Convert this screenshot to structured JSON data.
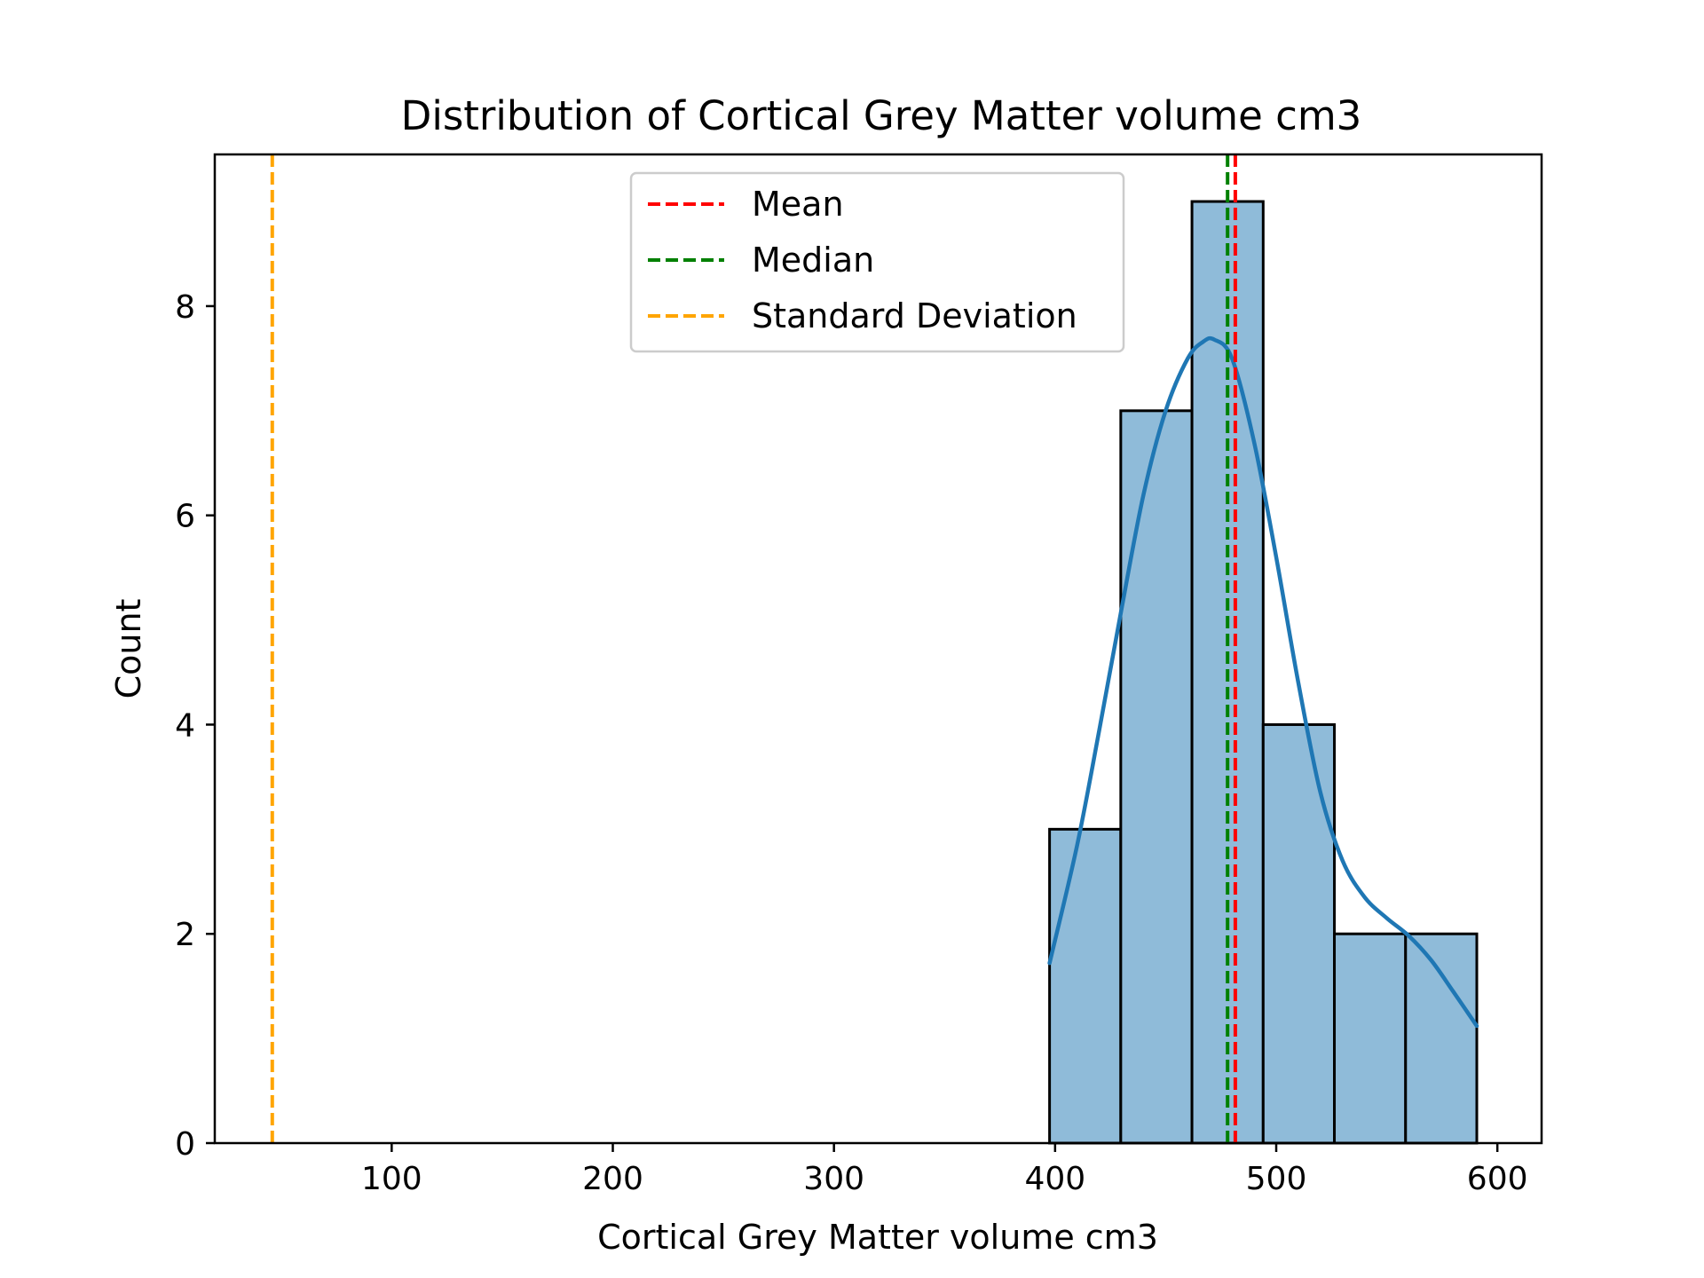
{
  "chart_data": {
    "type": "histogram",
    "title": "Distribution of Cortical Grey Matter volume cm3",
    "xlabel": "Cortical Grey Matter volume cm3",
    "ylabel": "Count",
    "xlim": [
      20,
      620
    ],
    "ylim": [
      0,
      9.45
    ],
    "xticks": [
      100,
      200,
      300,
      400,
      500,
      600
    ],
    "yticks": [
      0,
      2,
      4,
      6,
      8
    ],
    "grid": false,
    "bins": [
      {
        "x0": 397.5,
        "x1": 429.7,
        "count": 3
      },
      {
        "x0": 429.7,
        "x1": 461.9,
        "count": 7
      },
      {
        "x0": 461.9,
        "x1": 494.1,
        "count": 9
      },
      {
        "x0": 494.1,
        "x1": 526.3,
        "count": 4
      },
      {
        "x0": 526.3,
        "x1": 558.5,
        "count": 2
      },
      {
        "x0": 558.5,
        "x1": 590.7,
        "count": 2
      }
    ],
    "bar_color": "#8fbbd9",
    "bar_edge_color": "#000000",
    "kde": {
      "color": "#1f77b4",
      "points": [
        [
          397.5,
          1.72
        ],
        [
          410,
          2.85
        ],
        [
          420,
          3.95
        ],
        [
          430,
          5.1
        ],
        [
          440,
          6.2
        ],
        [
          450,
          7.0
        ],
        [
          460,
          7.5
        ],
        [
          467,
          7.66
        ],
        [
          472,
          7.68
        ],
        [
          480,
          7.5
        ],
        [
          490,
          6.7
        ],
        [
          500,
          5.6
        ],
        [
          510,
          4.4
        ],
        [
          520,
          3.35
        ],
        [
          530,
          2.7
        ],
        [
          540,
          2.35
        ],
        [
          550,
          2.15
        ],
        [
          560,
          1.98
        ],
        [
          570,
          1.75
        ],
        [
          580,
          1.45
        ],
        [
          590.7,
          1.12
        ]
      ]
    },
    "reference_lines": [
      {
        "name": "Mean",
        "x": 481.5,
        "color": "#ff0000"
      },
      {
        "name": "Median",
        "x": 478.0,
        "color": "#008000"
      },
      {
        "name": "Standard Deviation",
        "x": 46.0,
        "color": "#ffa500"
      }
    ],
    "legend": {
      "position": "upper center",
      "entries": [
        "Mean",
        "Median",
        "Standard Deviation"
      ]
    }
  }
}
